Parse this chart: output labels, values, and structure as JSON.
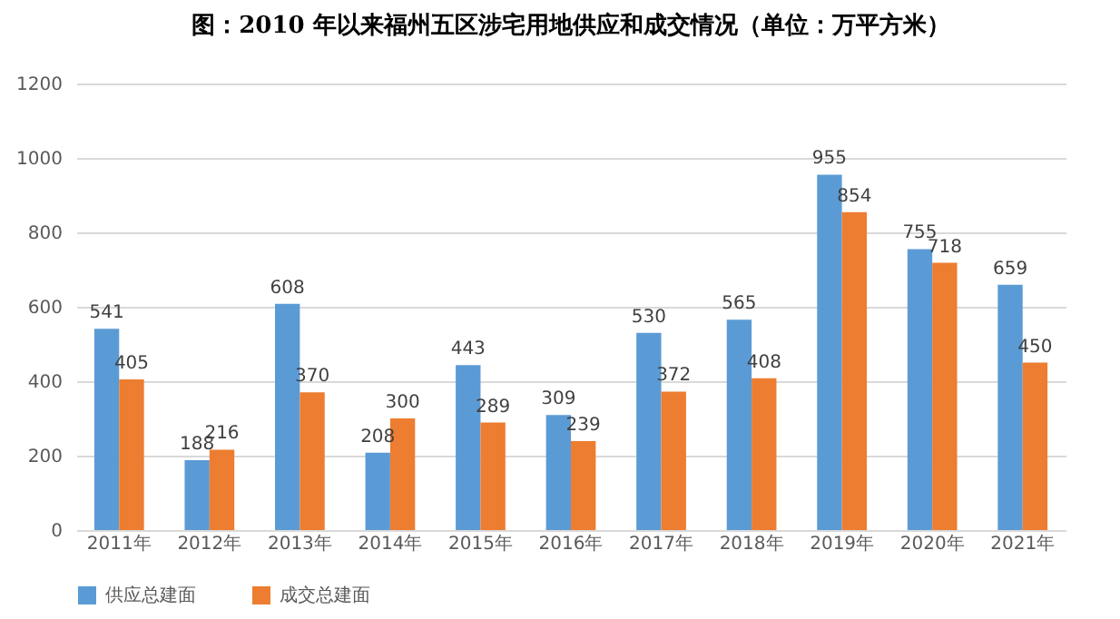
{
  "chart_data": {
    "type": "bar",
    "title": "图：2010 年以来福州五区涉宅用地供应和成交情况（单位：万平方米）",
    "categories": [
      "2011年",
      "2012年",
      "2013年",
      "2014年",
      "2015年",
      "2016年",
      "2017年",
      "2018年",
      "2019年",
      "2020年",
      "2021年"
    ],
    "series": [
      {
        "name": "供应总建面",
        "color": "#5b9bd5",
        "values": [
          541,
          188,
          608,
          208,
          443,
          309,
          530,
          565,
          955,
          755,
          659
        ]
      },
      {
        "name": "成交总建面",
        "color": "#ed7d31",
        "values": [
          405,
          216,
          370,
          300,
          289,
          239,
          372,
          408,
          854,
          718,
          450
        ]
      }
    ],
    "ylim": [
      0,
      1200
    ],
    "yticks": [
      0,
      200,
      400,
      600,
      800,
      1000,
      1200
    ],
    "grid": "y",
    "legend": "bottom",
    "data_labels": true
  }
}
